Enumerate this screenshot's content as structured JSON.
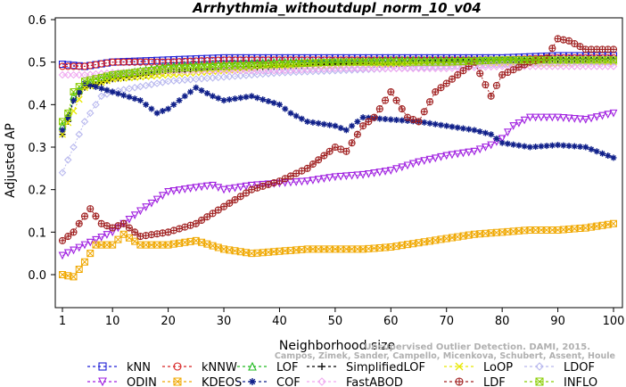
{
  "chart_data": {
    "type": "line",
    "title": "Arrhythmia_withoutdupl_norm_10_v04",
    "xlabel": "Neighborhood size",
    "ylabel": "Adjusted AP",
    "xlim": [
      1,
      100
    ],
    "ylim": [
      -0.05,
      0.6
    ],
    "x_ticks": [
      1,
      10,
      20,
      30,
      40,
      50,
      60,
      70,
      80,
      90,
      100
    ],
    "y_ticks": [
      0.0,
      0.1,
      0.2,
      0.3,
      0.4,
      0.5,
      0.6
    ],
    "x_tick_labels": [
      "1",
      "10",
      "20",
      "30",
      "40",
      "50",
      "60",
      "70",
      "80",
      "90",
      "100"
    ],
    "y_tick_labels": [
      "0.0",
      "0.1",
      "0.2",
      "0.3",
      "0.4",
      "0.5",
      "0.6"
    ],
    "grid": false,
    "legend_position": "bottom",
    "series": [
      {
        "name": "kNN",
        "color": "#1f1fd6",
        "marker": "square",
        "points": [
          [
            1,
            0.495
          ],
          [
            5,
            0.49
          ],
          [
            10,
            0.5
          ],
          [
            20,
            0.505
          ],
          [
            30,
            0.51
          ],
          [
            40,
            0.51
          ],
          [
            50,
            0.51
          ],
          [
            60,
            0.51
          ],
          [
            70,
            0.51
          ],
          [
            80,
            0.51
          ],
          [
            90,
            0.515
          ],
          [
            100,
            0.515
          ]
        ]
      },
      {
        "name": "kNNW",
        "color": "#d62020",
        "marker": "circle",
        "points": [
          [
            1,
            0.49
          ],
          [
            5,
            0.49
          ],
          [
            10,
            0.5
          ],
          [
            20,
            0.5
          ],
          [
            30,
            0.505
          ],
          [
            40,
            0.505
          ],
          [
            50,
            0.505
          ],
          [
            60,
            0.505
          ],
          [
            70,
            0.505
          ],
          [
            80,
            0.505
          ],
          [
            90,
            0.51
          ],
          [
            100,
            0.51
          ]
        ]
      },
      {
        "name": "LOF",
        "color": "#22bb22",
        "marker": "triangle",
        "points": [
          [
            1,
            0.35
          ],
          [
            2,
            0.37
          ],
          [
            3,
            0.42
          ],
          [
            5,
            0.45
          ],
          [
            10,
            0.47
          ],
          [
            20,
            0.49
          ],
          [
            30,
            0.495
          ],
          [
            40,
            0.5
          ],
          [
            50,
            0.5
          ],
          [
            60,
            0.505
          ],
          [
            70,
            0.505
          ],
          [
            80,
            0.505
          ],
          [
            90,
            0.505
          ],
          [
            100,
            0.505
          ]
        ]
      },
      {
        "name": "SimplifiedLOF",
        "color": "#000000",
        "marker": "plus",
        "points": [
          [
            1,
            0.33
          ],
          [
            2,
            0.36
          ],
          [
            3,
            0.41
          ],
          [
            5,
            0.44
          ],
          [
            10,
            0.46
          ],
          [
            20,
            0.475
          ],
          [
            30,
            0.485
          ],
          [
            40,
            0.49
          ],
          [
            50,
            0.495
          ],
          [
            60,
            0.495
          ],
          [
            70,
            0.5
          ],
          [
            80,
            0.5
          ],
          [
            90,
            0.505
          ],
          [
            100,
            0.505
          ]
        ]
      },
      {
        "name": "LoOP",
        "color": "#e8e800",
        "marker": "x",
        "points": [
          [
            1,
            0.33
          ],
          [
            5,
            0.44
          ],
          [
            10,
            0.46
          ],
          [
            20,
            0.47
          ],
          [
            30,
            0.48
          ],
          [
            40,
            0.49
          ],
          [
            50,
            0.49
          ],
          [
            60,
            0.495
          ],
          [
            70,
            0.495
          ],
          [
            80,
            0.495
          ],
          [
            90,
            0.495
          ],
          [
            100,
            0.5
          ]
        ]
      },
      {
        "name": "LDOF",
        "color": "#b8b8ee",
        "marker": "diamond",
        "points": [
          [
            1,
            0.24
          ],
          [
            3,
            0.3
          ],
          [
            5,
            0.36
          ],
          [
            8,
            0.42
          ],
          [
            10,
            0.43
          ],
          [
            20,
            0.455
          ],
          [
            30,
            0.465
          ],
          [
            40,
            0.475
          ],
          [
            50,
            0.48
          ],
          [
            60,
            0.485
          ],
          [
            70,
            0.49
          ],
          [
            80,
            0.495
          ],
          [
            90,
            0.5
          ],
          [
            100,
            0.5
          ]
        ]
      },
      {
        "name": "ODIN",
        "color": "#a020e0",
        "marker": "triangle-down",
        "points": [
          [
            1,
            0.045
          ],
          [
            5,
            0.07
          ],
          [
            10,
            0.1
          ],
          [
            15,
            0.15
          ],
          [
            20,
            0.195
          ],
          [
            25,
            0.205
          ],
          [
            28,
            0.21
          ],
          [
            30,
            0.2
          ],
          [
            35,
            0.21
          ],
          [
            40,
            0.215
          ],
          [
            45,
            0.22
          ],
          [
            50,
            0.23
          ],
          [
            55,
            0.235
          ],
          [
            60,
            0.245
          ],
          [
            65,
            0.265
          ],
          [
            70,
            0.28
          ],
          [
            75,
            0.29
          ],
          [
            78,
            0.305
          ],
          [
            80,
            0.32
          ],
          [
            82,
            0.35
          ],
          [
            85,
            0.37
          ],
          [
            90,
            0.37
          ],
          [
            95,
            0.365
          ],
          [
            100,
            0.38
          ]
        ]
      },
      {
        "name": "KDEOS",
        "color": "#f0a800",
        "marker": "square-x",
        "points": [
          [
            1,
            0.0
          ],
          [
            3,
            -0.005
          ],
          [
            5,
            0.03
          ],
          [
            7,
            0.07
          ],
          [
            10,
            0.07
          ],
          [
            12,
            0.095
          ],
          [
            15,
            0.07
          ],
          [
            20,
            0.07
          ],
          [
            25,
            0.08
          ],
          [
            30,
            0.06
          ],
          [
            35,
            0.05
          ],
          [
            40,
            0.055
          ],
          [
            45,
            0.06
          ],
          [
            50,
            0.06
          ],
          [
            55,
            0.06
          ],
          [
            60,
            0.065
          ],
          [
            65,
            0.075
          ],
          [
            70,
            0.085
          ],
          [
            75,
            0.095
          ],
          [
            80,
            0.1
          ],
          [
            85,
            0.105
          ],
          [
            90,
            0.105
          ],
          [
            95,
            0.11
          ],
          [
            100,
            0.12
          ]
        ]
      },
      {
        "name": "COF",
        "color": "#10208a",
        "marker": "asterisk",
        "points": [
          [
            1,
            0.34
          ],
          [
            2,
            0.37
          ],
          [
            3,
            0.41
          ],
          [
            5,
            0.45
          ],
          [
            10,
            0.43
          ],
          [
            15,
            0.41
          ],
          [
            18,
            0.38
          ],
          [
            20,
            0.39
          ],
          [
            22,
            0.41
          ],
          [
            25,
            0.44
          ],
          [
            28,
            0.42
          ],
          [
            30,
            0.41
          ],
          [
            35,
            0.42
          ],
          [
            40,
            0.4
          ],
          [
            42,
            0.38
          ],
          [
            45,
            0.36
          ],
          [
            50,
            0.35
          ],
          [
            52,
            0.34
          ],
          [
            55,
            0.37
          ],
          [
            60,
            0.365
          ],
          [
            65,
            0.36
          ],
          [
            70,
            0.35
          ],
          [
            75,
            0.34
          ],
          [
            78,
            0.33
          ],
          [
            80,
            0.31
          ],
          [
            85,
            0.3
          ],
          [
            90,
            0.305
          ],
          [
            95,
            0.3
          ],
          [
            100,
            0.275
          ]
        ]
      },
      {
        "name": "FastABOD",
        "color": "#f0a8f0",
        "marker": "diamond",
        "points": [
          [
            1,
            0.47
          ],
          [
            5,
            0.47
          ],
          [
            10,
            0.475
          ],
          [
            20,
            0.48
          ],
          [
            30,
            0.48
          ],
          [
            40,
            0.48
          ],
          [
            50,
            0.485
          ],
          [
            60,
            0.485
          ],
          [
            70,
            0.485
          ],
          [
            80,
            0.49
          ],
          [
            90,
            0.49
          ],
          [
            100,
            0.49
          ]
        ]
      },
      {
        "name": "LDF",
        "color": "#a02020",
        "marker": "circle-plus",
        "points": [
          [
            1,
            0.08
          ],
          [
            3,
            0.1
          ],
          [
            4,
            0.12
          ],
          [
            6,
            0.155
          ],
          [
            8,
            0.12
          ],
          [
            10,
            0.11
          ],
          [
            12,
            0.12
          ],
          [
            15,
            0.09
          ],
          [
            20,
            0.1
          ],
          [
            25,
            0.12
          ],
          [
            30,
            0.16
          ],
          [
            35,
            0.2
          ],
          [
            40,
            0.22
          ],
          [
            45,
            0.25
          ],
          [
            50,
            0.3
          ],
          [
            52,
            0.29
          ],
          [
            55,
            0.35
          ],
          [
            57,
            0.37
          ],
          [
            60,
            0.43
          ],
          [
            63,
            0.37
          ],
          [
            65,
            0.36
          ],
          [
            68,
            0.43
          ],
          [
            70,
            0.45
          ],
          [
            75,
            0.5
          ],
          [
            78,
            0.42
          ],
          [
            80,
            0.47
          ],
          [
            85,
            0.5
          ],
          [
            88,
            0.51
          ],
          [
            90,
            0.555
          ],
          [
            92,
            0.55
          ],
          [
            95,
            0.53
          ],
          [
            98,
            0.53
          ],
          [
            100,
            0.53
          ]
        ]
      },
      {
        "name": "INFLO",
        "color": "#88cc00",
        "marker": "square-x",
        "points": [
          [
            1,
            0.36
          ],
          [
            2,
            0.38
          ],
          [
            3,
            0.43
          ],
          [
            5,
            0.455
          ],
          [
            10,
            0.47
          ],
          [
            20,
            0.485
          ],
          [
            30,
            0.49
          ],
          [
            40,
            0.495
          ],
          [
            50,
            0.5
          ],
          [
            60,
            0.5
          ],
          [
            70,
            0.5
          ],
          [
            80,
            0.505
          ],
          [
            90,
            0.505
          ],
          [
            100,
            0.505
          ]
        ]
      }
    ],
    "legend_order": [
      "kNN",
      "kNNW",
      "LOF",
      "SimplifiedLOF",
      "LoOP",
      "LDOF",
      "ODIN",
      "KDEOS",
      "COF",
      "FastABOD",
      "LDF",
      "INFLO"
    ]
  },
  "watermark": {
    "line1": "Unsupervised Outlier Detection. DAMI, 2015.",
    "line2": "Campos, Zimek, Sander, Campello, Micenkova, Schubert, Assent, Houle"
  }
}
